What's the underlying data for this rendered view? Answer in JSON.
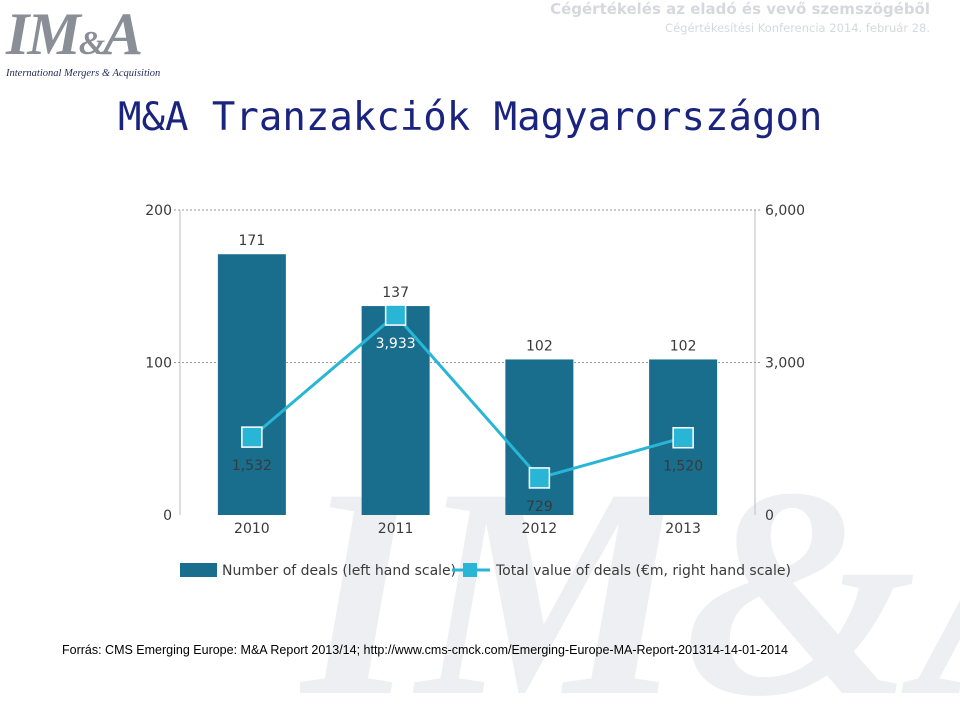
{
  "header": {
    "logo_text": "IM&A",
    "logo_tagline": "International Mergers & Acquisition",
    "title": "Cégértékelés az eladó és vevő szemszögéből",
    "subtitle": "Cégértékesítési Konferencia 2014. február 28."
  },
  "page_title": "M&A Tranzakciók Magyarországon",
  "watermark_text": "IM&A",
  "source": {
    "prefix": "Forrás: CMS Emerging Europe: M&A Report 2013/14; ",
    "url": "http://www.cms-cmck.com/Emerging-Europe-MA-Report-201314-14-01-2014"
  },
  "colors": {
    "bar": "#186e8c",
    "line": "#29b6d6",
    "label": "#3a3a3a",
    "grid": "#9a9a9a",
    "axis": "#bdbdbd"
  },
  "chart_data": {
    "type": "bar",
    "categories": [
      "2010",
      "2011",
      "2012",
      "2013"
    ],
    "series": [
      {
        "name": "Number of deals (left hand scale)",
        "type": "bar",
        "axis": "left",
        "values": [
          171,
          137,
          102,
          102
        ],
        "labels": [
          "171",
          "137",
          "102",
          "102"
        ]
      },
      {
        "name": "Total value of deals (€m, right hand scale)",
        "type": "line",
        "axis": "right",
        "values": [
          1532,
          3933,
          729,
          1520
        ],
        "labels": [
          "1,532",
          "3,933",
          "729",
          "1,520"
        ]
      }
    ],
    "left_axis": {
      "ylim": [
        0,
        200
      ],
      "ticks": [
        "0",
        "100",
        "200"
      ]
    },
    "right_axis": {
      "ylim": [
        0,
        6000
      ],
      "ticks": [
        "0",
        "3,000",
        "6,000"
      ]
    },
    "grid": true,
    "legend_position": "bottom"
  }
}
